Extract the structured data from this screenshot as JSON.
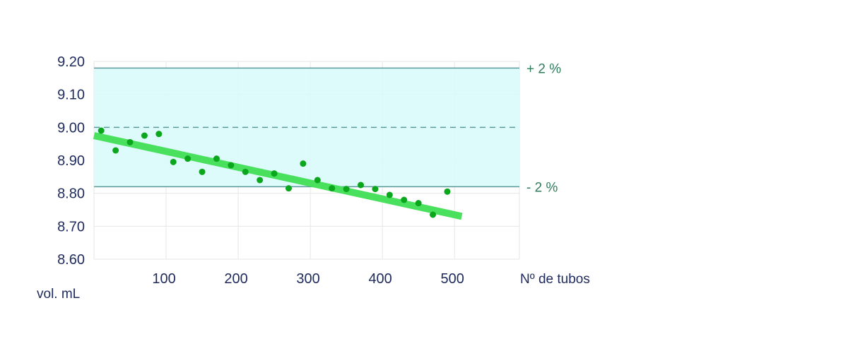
{
  "chart_data": {
    "type": "scatter",
    "xlabel": "Nº de tubos",
    "ylabel": "vol. mL",
    "xlim": [
      0,
      590
    ],
    "ylim": [
      8.6,
      9.2
    ],
    "x_ticks": [
      100,
      200,
      300,
      400,
      500
    ],
    "x_tick_labels": [
      "100",
      "200",
      "300",
      "400",
      "500"
    ],
    "y_ticks": [
      8.6,
      8.7,
      8.8,
      8.9,
      9.0,
      9.1,
      9.2
    ],
    "y_tick_labels": [
      "8.60",
      "8.70",
      "8.80",
      "8.90",
      "9.00",
      "9.10",
      "9.20"
    ],
    "grid": true,
    "tolerance_band": {
      "lower": 8.82,
      "upper": 9.18,
      "nominal": 9.0,
      "upper_label": "+ 2 %",
      "lower_label": "- 2 %"
    },
    "points": [
      {
        "x": 10,
        "y": 8.99
      },
      {
        "x": 30,
        "y": 8.93
      },
      {
        "x": 50,
        "y": 8.955
      },
      {
        "x": 70,
        "y": 8.975
      },
      {
        "x": 90,
        "y": 8.98
      },
      {
        "x": 110,
        "y": 8.895
      },
      {
        "x": 130,
        "y": 8.905
      },
      {
        "x": 150,
        "y": 8.865
      },
      {
        "x": 170,
        "y": 8.905
      },
      {
        "x": 190,
        "y": 8.885
      },
      {
        "x": 210,
        "y": 8.865
      },
      {
        "x": 230,
        "y": 8.84
      },
      {
        "x": 250,
        "y": 8.86
      },
      {
        "x": 270,
        "y": 8.815
      },
      {
        "x": 290,
        "y": 8.89
      },
      {
        "x": 310,
        "y": 8.84
      },
      {
        "x": 330,
        "y": 8.815
      },
      {
        "x": 350,
        "y": 8.813
      },
      {
        "x": 370,
        "y": 8.825
      },
      {
        "x": 390,
        "y": 8.813
      },
      {
        "x": 410,
        "y": 8.795
      },
      {
        "x": 430,
        "y": 8.78
      },
      {
        "x": 450,
        "y": 8.77
      },
      {
        "x": 470,
        "y": 8.735
      },
      {
        "x": 490,
        "y": 8.805
      }
    ],
    "trend": {
      "x": [
        0,
        510
      ],
      "y": [
        8.975,
        8.73
      ]
    },
    "colors": {
      "points": "#0aa61c",
      "trend": "#48e05c",
      "band_fill": "#d8fafa",
      "band_line": "#5a9a9a",
      "grid": "#e6e6e6",
      "text": "#1f2a5c",
      "band_label": "#2e7d5b"
    }
  }
}
